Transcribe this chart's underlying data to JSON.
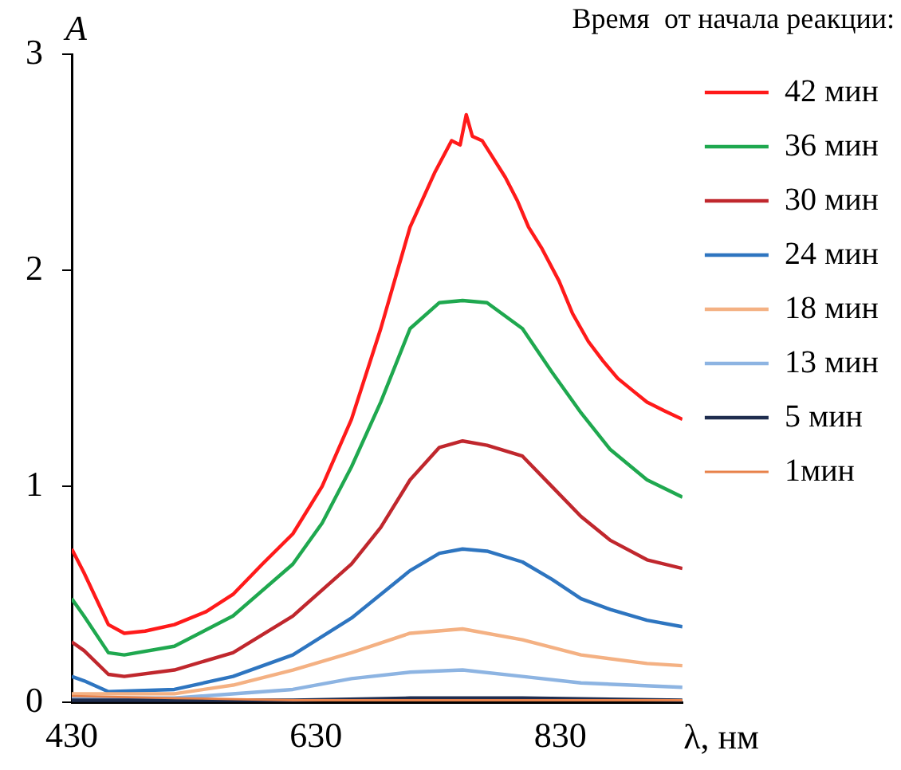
{
  "chart_data": {
    "type": "line",
    "legend_title": "Время  от начала реакции:",
    "ylabel": "A",
    "xlabel": "λ, нм",
    "xlim": [
      430,
      930
    ],
    "xticks": [
      430,
      630,
      830
    ],
    "ylim": [
      0,
      3
    ],
    "yticks": [
      0,
      1,
      2,
      3
    ],
    "grid": false,
    "legend": "right",
    "marker": "none",
    "line_style": "solid",
    "series": [
      {
        "name": "42 мин",
        "color": "#ff1a1a",
        "x": [
          430,
          440,
          460,
          473,
          490,
          514,
          540,
          562,
          586,
          611,
          635,
          659,
          683,
          707,
          727,
          741,
          748,
          753,
          758,
          766,
          775,
          785,
          795,
          804,
          815,
          829,
          840,
          853,
          865,
          877,
          890,
          901,
          915,
          930
        ],
        "values": [
          0.71,
          0.6,
          0.36,
          0.32,
          0.33,
          0.36,
          0.42,
          0.5,
          0.64,
          0.78,
          1.0,
          1.31,
          1.73,
          2.2,
          2.45,
          2.6,
          2.58,
          2.72,
          2.62,
          2.6,
          2.52,
          2.43,
          2.32,
          2.2,
          2.1,
          1.95,
          1.8,
          1.67,
          1.58,
          1.5,
          1.44,
          1.39,
          1.35,
          1.31
        ]
      },
      {
        "name": "36 мин",
        "color": "#1fa84f",
        "x": [
          430,
          440,
          460,
          473,
          514,
          562,
          611,
          635,
          659,
          683,
          707,
          731,
          750,
          770,
          799,
          823,
          847,
          871,
          901,
          930
        ],
        "values": [
          0.48,
          0.4,
          0.23,
          0.22,
          0.26,
          0.4,
          0.64,
          0.83,
          1.09,
          1.39,
          1.73,
          1.85,
          1.86,
          1.85,
          1.73,
          1.53,
          1.34,
          1.17,
          1.03,
          0.95
        ]
      },
      {
        "name": "30 мин",
        "color": "#c0272d",
        "x": [
          430,
          440,
          460,
          473,
          514,
          562,
          611,
          659,
          683,
          707,
          731,
          750,
          770,
          799,
          823,
          847,
          871,
          901,
          930
        ],
        "values": [
          0.28,
          0.24,
          0.13,
          0.12,
          0.15,
          0.23,
          0.4,
          0.64,
          0.81,
          1.03,
          1.18,
          1.21,
          1.19,
          1.14,
          1.0,
          0.86,
          0.75,
          0.66,
          0.62
        ]
      },
      {
        "name": "24 мин",
        "color": "#2e75c0",
        "x": [
          430,
          440,
          460,
          514,
          562,
          611,
          659,
          707,
          731,
          750,
          770,
          799,
          823,
          847,
          871,
          901,
          930
        ],
        "values": [
          0.12,
          0.1,
          0.05,
          0.06,
          0.12,
          0.22,
          0.39,
          0.61,
          0.69,
          0.71,
          0.7,
          0.65,
          0.57,
          0.48,
          0.43,
          0.38,
          0.35
        ]
      },
      {
        "name": "18 мин",
        "color": "#f4b183",
        "x": [
          430,
          514,
          562,
          611,
          659,
          707,
          750,
          799,
          847,
          901,
          930
        ],
        "values": [
          0.04,
          0.04,
          0.08,
          0.15,
          0.23,
          0.32,
          0.34,
          0.29,
          0.22,
          0.18,
          0.17
        ]
      },
      {
        "name": "13 мин",
        "color": "#8db4e2",
        "x": [
          430,
          514,
          611,
          659,
          707,
          750,
          799,
          847,
          930
        ],
        "values": [
          0.02,
          0.02,
          0.06,
          0.11,
          0.14,
          0.15,
          0.12,
          0.09,
          0.07
        ]
      },
      {
        "name": "5 мин",
        "color": "#1f2d4f",
        "x": [
          430,
          514,
          611,
          707,
          750,
          799,
          930
        ],
        "values": [
          0.01,
          0.01,
          0.01,
          0.02,
          0.02,
          0.02,
          0.01
        ]
      },
      {
        "name": "1мин",
        "color": "#e8824a",
        "x": [
          430,
          514,
          611,
          750,
          930
        ],
        "values": [
          0.03,
          0.02,
          0.01,
          0.01,
          0.01
        ]
      }
    ]
  }
}
